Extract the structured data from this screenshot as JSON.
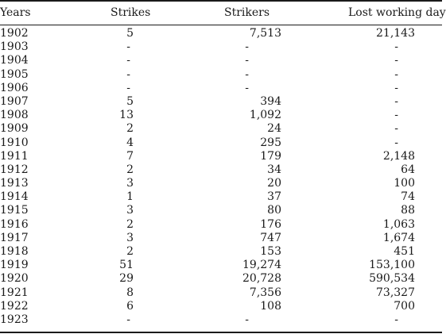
{
  "table": {
    "headers": {
      "years": "Years",
      "strikes": "Strikes",
      "strikers": "Strikers",
      "lost_days": "Lost working days"
    },
    "rows": [
      {
        "year": "1902",
        "strikes": "5",
        "strikers": "7,513",
        "lost": "21,143"
      },
      {
        "year": "1903",
        "strikes": "-",
        "strikers": "-",
        "lost": "-"
      },
      {
        "year": "1904",
        "strikes": "-",
        "strikers": "-",
        "lost": "-"
      },
      {
        "year": "1905",
        "strikes": "-",
        "strikers": "-",
        "lost": "-"
      },
      {
        "year": "1906",
        "strikes": "-",
        "strikers": "-",
        "lost": "-"
      },
      {
        "year": "1907",
        "strikes": "5",
        "strikers": "394",
        "lost": "-"
      },
      {
        "year": "1908",
        "strikes": "13",
        "strikers": "1,092",
        "lost": "-"
      },
      {
        "year": "1909",
        "strikes": "2",
        "strikers": "24",
        "lost": "-"
      },
      {
        "year": "1910",
        "strikes": "4",
        "strikers": "295",
        "lost": "-"
      },
      {
        "year": "1911",
        "strikes": "7",
        "strikers": "179",
        "lost": "2,148"
      },
      {
        "year": "1912",
        "strikes": "2",
        "strikers": "34",
        "lost": "64"
      },
      {
        "year": "1913",
        "strikes": "3",
        "strikers": "20",
        "lost": "100"
      },
      {
        "year": "1914",
        "strikes": "1",
        "strikers": "37",
        "lost": "74"
      },
      {
        "year": "1915",
        "strikes": "3",
        "strikers": "80",
        "lost": "88"
      },
      {
        "year": "1916",
        "strikes": "2",
        "strikers": "176",
        "lost": "1,063"
      },
      {
        "year": "1917",
        "strikes": "3",
        "strikers": "747",
        "lost": "1,674"
      },
      {
        "year": "1918",
        "strikes": "2",
        "strikers": "153",
        "lost": "451"
      },
      {
        "year": "1919",
        "strikes": "51",
        "strikers": "19,274",
        "lost": "153,100"
      },
      {
        "year": "1920",
        "strikes": "29",
        "strikers": "20,728",
        "lost": "590,534"
      },
      {
        "year": "1921",
        "strikes": "8",
        "strikers": "7,356",
        "lost": "73,327"
      },
      {
        "year": "1922",
        "strikes": "6",
        "strikers": "108",
        "lost": "700"
      },
      {
        "year": "1923",
        "strikes": "-",
        "strikers": "-",
        "lost": "-"
      }
    ]
  }
}
